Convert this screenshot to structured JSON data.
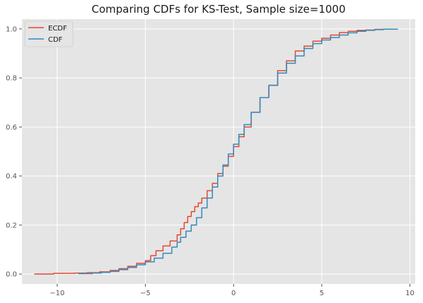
{
  "chart_data": {
    "type": "line",
    "title": "Comparing CDFs for KS-Test, Sample size=1000",
    "xlabel": "",
    "ylabel": "",
    "xlim": [
      -12,
      10.3
    ],
    "ylim": [
      -0.04,
      1.04
    ],
    "xticks": [
      -10,
      -5,
      0,
      5,
      10
    ],
    "xtick_labels": [
      "−10",
      "−5",
      "0",
      "5",
      "10"
    ],
    "yticks": [
      0.0,
      0.2,
      0.4,
      0.6,
      0.8,
      1.0
    ],
    "ytick_labels": [
      "0.0",
      "0.2",
      "0.4",
      "0.6",
      "0.8",
      "1.0"
    ],
    "grid": true,
    "legend_position": "top-left",
    "series": [
      {
        "name": "ECDF",
        "color": "#E24A33",
        "x": [
          -11.3,
          -10.2,
          -9.0,
          -8.3,
          -7.6,
          -7.0,
          -6.5,
          -6.0,
          -5.5,
          -5.0,
          -4.7,
          -4.4,
          -4.0,
          -3.6,
          -3.2,
          -3.0,
          -2.8,
          -2.6,
          -2.4,
          -2.2,
          -2.0,
          -1.8,
          -1.5,
          -1.2,
          -0.9,
          -0.6,
          -0.3,
          0.0,
          0.3,
          0.6,
          1.0,
          1.5,
          2.0,
          2.5,
          3.0,
          3.5,
          4.0,
          4.5,
          5.0,
          5.5,
          6.0,
          6.5,
          7.0,
          7.5,
          8.0,
          8.5
        ],
        "y": [
          0.0,
          0.003,
          0.004,
          0.006,
          0.009,
          0.015,
          0.022,
          0.032,
          0.044,
          0.055,
          0.075,
          0.095,
          0.115,
          0.135,
          0.16,
          0.185,
          0.21,
          0.235,
          0.255,
          0.275,
          0.29,
          0.31,
          0.34,
          0.37,
          0.41,
          0.44,
          0.48,
          0.52,
          0.56,
          0.6,
          0.66,
          0.72,
          0.77,
          0.83,
          0.87,
          0.91,
          0.93,
          0.95,
          0.962,
          0.975,
          0.985,
          0.99,
          0.994,
          0.996,
          0.998,
          1.0
        ]
      },
      {
        "name": "CDF",
        "color": "#348ABD",
        "x": [
          -8.8,
          -8.0,
          -7.5,
          -7.0,
          -6.5,
          -6.0,
          -5.5,
          -5.0,
          -4.5,
          -4.0,
          -3.5,
          -3.2,
          -3.0,
          -2.7,
          -2.4,
          -2.1,
          -1.8,
          -1.5,
          -1.2,
          -0.9,
          -0.6,
          -0.3,
          0.0,
          0.3,
          0.6,
          1.0,
          1.5,
          2.0,
          2.5,
          3.0,
          3.5,
          4.0,
          4.5,
          5.0,
          5.5,
          6.0,
          6.5,
          7.0,
          7.5,
          8.0,
          8.5,
          9.3
        ],
        "y": [
          0.002,
          0.004,
          0.007,
          0.011,
          0.018,
          0.027,
          0.038,
          0.05,
          0.065,
          0.085,
          0.11,
          0.13,
          0.15,
          0.175,
          0.2,
          0.23,
          0.27,
          0.31,
          0.355,
          0.4,
          0.445,
          0.49,
          0.53,
          0.57,
          0.61,
          0.66,
          0.72,
          0.77,
          0.82,
          0.86,
          0.89,
          0.92,
          0.94,
          0.955,
          0.965,
          0.975,
          0.984,
          0.99,
          0.994,
          0.997,
          0.999,
          1.0
        ]
      }
    ]
  }
}
